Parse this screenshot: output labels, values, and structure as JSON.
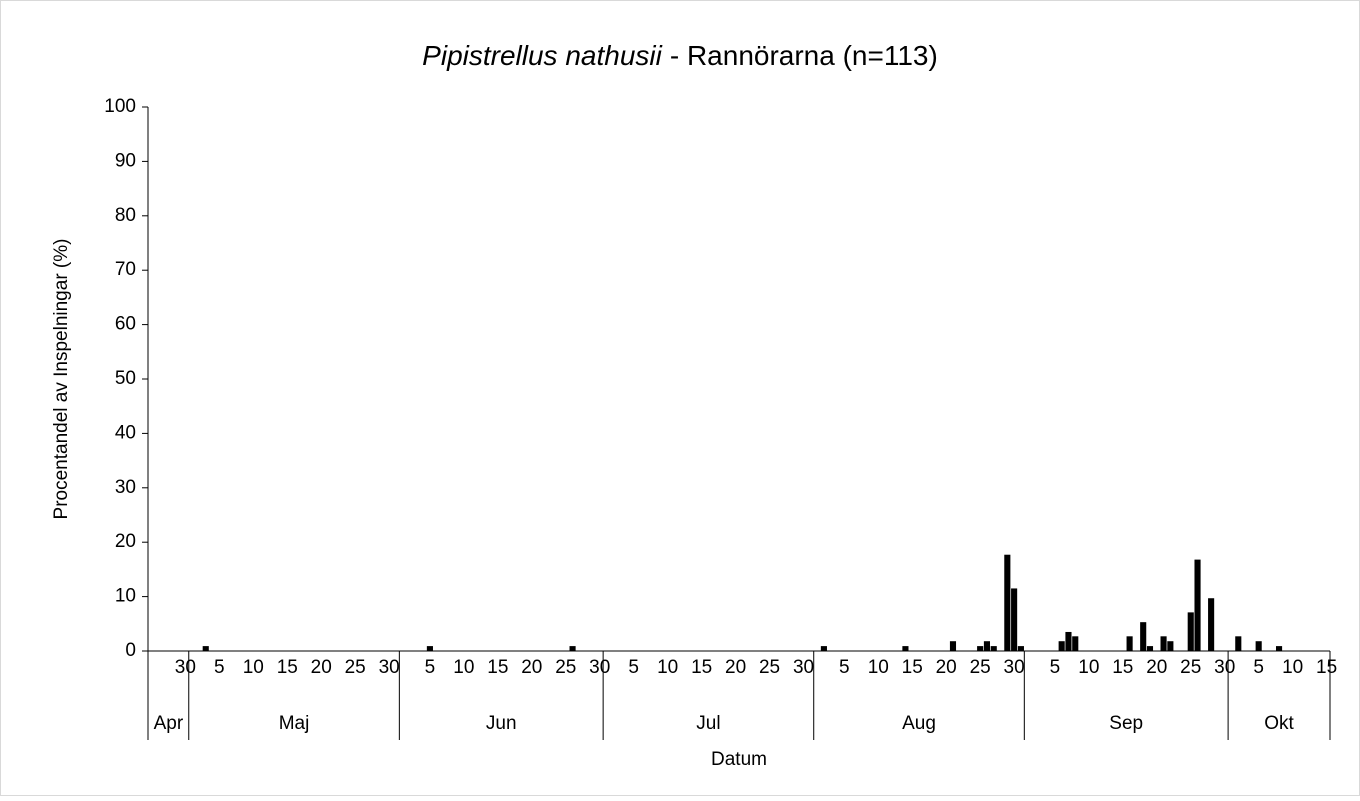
{
  "chart_data": {
    "type": "bar",
    "title": {
      "species": "Pipistrellus nathusii",
      "text": "- Rannörarna (n=113)"
    },
    "y_label": "Procentandel av Inspelningar (%)",
    "x_label": "Datum",
    "color": "#000000",
    "ylim": [
      0,
      100
    ],
    "yticks": [
      0,
      10,
      20,
      30,
      40,
      50,
      60,
      70,
      80,
      90,
      100
    ],
    "grid": false,
    "months": [
      {
        "name": "Apr",
        "days": [
          null,
          null,
          null,
          null,
          null,
          "30"
        ],
        "values": [
          0,
          0,
          0,
          0,
          0,
          0
        ]
      },
      {
        "name": "Maj",
        "days": [
          null,
          null,
          null,
          null,
          "5",
          null,
          null,
          null,
          null,
          "10",
          null,
          null,
          null,
          null,
          "15",
          null,
          null,
          null,
          null,
          "20",
          null,
          null,
          null,
          null,
          "25",
          null,
          null,
          null,
          null,
          "30",
          null
        ],
        "values": [
          0,
          0,
          0.9,
          0,
          0,
          0,
          0,
          0,
          0,
          0,
          0,
          0,
          0,
          0,
          0,
          0,
          0,
          0,
          0,
          0,
          0,
          0,
          0,
          0,
          0,
          0,
          0,
          0,
          0,
          0,
          0
        ]
      },
      {
        "name": "Jun",
        "days": [
          null,
          null,
          null,
          null,
          "5",
          null,
          null,
          null,
          null,
          "10",
          null,
          null,
          null,
          null,
          "15",
          null,
          null,
          null,
          null,
          "20",
          null,
          null,
          null,
          null,
          "25",
          null,
          null,
          null,
          null,
          "30"
        ],
        "values": [
          0,
          0,
          0,
          0,
          0.9,
          0,
          0,
          0,
          0,
          0,
          0,
          0,
          0,
          0,
          0,
          0,
          0,
          0,
          0,
          0,
          0,
          0,
          0,
          0,
          0,
          0.9,
          0,
          0,
          0,
          0
        ]
      },
      {
        "name": "Jul",
        "days": [
          null,
          null,
          null,
          null,
          "5",
          null,
          null,
          null,
          null,
          "10",
          null,
          null,
          null,
          null,
          "15",
          null,
          null,
          null,
          null,
          "20",
          null,
          null,
          null,
          null,
          "25",
          null,
          null,
          null,
          null,
          "30",
          null
        ],
        "values": [
          0,
          0,
          0,
          0,
          0,
          0,
          0,
          0,
          0,
          0,
          0,
          0,
          0,
          0,
          0,
          0,
          0,
          0,
          0,
          0,
          0,
          0,
          0,
          0,
          0,
          0,
          0,
          0,
          0,
          0,
          0
        ]
      },
      {
        "name": "Aug",
        "days": [
          null,
          null,
          null,
          null,
          "5",
          null,
          null,
          null,
          null,
          "10",
          null,
          null,
          null,
          null,
          "15",
          null,
          null,
          null,
          null,
          "20",
          null,
          null,
          null,
          null,
          "25",
          null,
          null,
          null,
          null,
          "30",
          null
        ],
        "values": [
          0,
          0.9,
          0,
          0,
          0,
          0,
          0,
          0,
          0,
          0,
          0,
          0,
          0,
          0.9,
          0,
          0,
          0,
          0,
          0,
          0,
          1.8,
          0,
          0,
          0,
          0.9,
          1.8,
          0.9,
          0,
          17.7,
          11.5,
          0.9
        ]
      },
      {
        "name": "Sep",
        "days": [
          null,
          null,
          null,
          null,
          "5",
          null,
          null,
          null,
          null,
          "10",
          null,
          null,
          null,
          null,
          "15",
          null,
          null,
          null,
          null,
          "20",
          null,
          null,
          null,
          null,
          "25",
          null,
          null,
          null,
          null,
          "30"
        ],
        "values": [
          0,
          0,
          0,
          0,
          0,
          1.8,
          3.5,
          2.7,
          0,
          0,
          0,
          0,
          0,
          0,
          0,
          2.7,
          0,
          5.3,
          0.9,
          0,
          2.7,
          1.8,
          0,
          0,
          7.1,
          16.8,
          0,
          9.7,
          0,
          0
        ]
      },
      {
        "name": "Okt",
        "days": [
          null,
          null,
          null,
          null,
          "5",
          null,
          null,
          null,
          null,
          "10",
          null,
          null,
          null,
          null,
          "15"
        ],
        "values": [
          0,
          2.7,
          0,
          0,
          1.8,
          0,
          0,
          0.9,
          0,
          0,
          0,
          0,
          0,
          0,
          0
        ]
      }
    ]
  }
}
